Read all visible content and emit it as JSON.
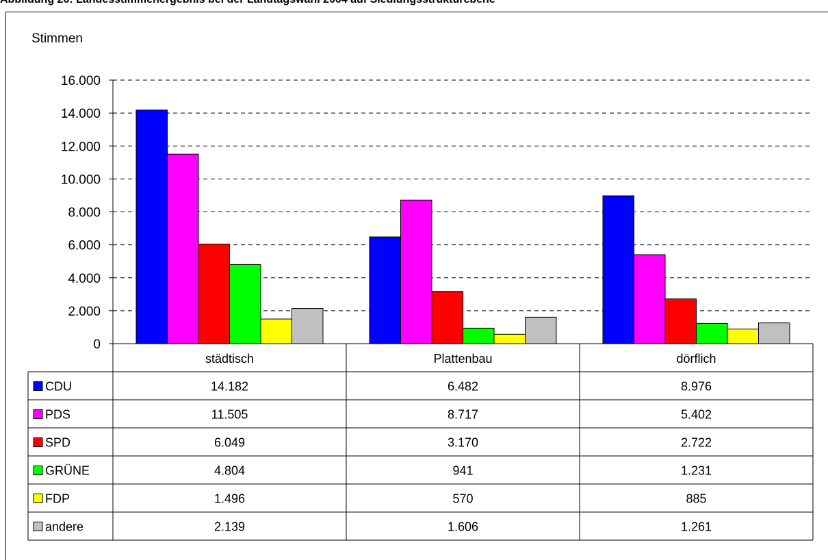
{
  "header": {
    "title": "Abbildung 26: Landesstimmenergebnis bei der Landtagswahl 2004 auf Siedlungsstrukturebene"
  },
  "colors": {
    "CDU": "#0000ff",
    "PDS": "#ff00ff",
    "SPD": "#ff0000",
    "GRÜNE": "#00ff00",
    "FDP": "#ffff00",
    "andere": "#c0c0c0"
  },
  "chart_data": {
    "type": "bar",
    "title": "",
    "ylabel": "Stimmen",
    "xlabel": "",
    "ylim": [
      0,
      16000
    ],
    "yticks": [
      0,
      2000,
      4000,
      6000,
      8000,
      10000,
      12000,
      14000,
      16000
    ],
    "ytick_labels": [
      "0",
      "2.000",
      "4.000",
      "6.000",
      "8.000",
      "10.000",
      "12.000",
      "14.000",
      "16.000"
    ],
    "grid": "horizontal dashed",
    "legend": "data table below chart",
    "categories": [
      "städtisch",
      "Plattenbau",
      "dörflich"
    ],
    "series": [
      {
        "name": "CDU",
        "values": [
          14182,
          6482,
          8976
        ],
        "labels": [
          "14.182",
          "6.482",
          "8.976"
        ]
      },
      {
        "name": "PDS",
        "values": [
          11505,
          8717,
          5402
        ],
        "labels": [
          "11.505",
          "8.717",
          "5.402"
        ]
      },
      {
        "name": "SPD",
        "values": [
          6049,
          3170,
          2722
        ],
        "labels": [
          "6.049",
          "3.170",
          "2.722"
        ]
      },
      {
        "name": "GRÜNE",
        "values": [
          4804,
          941,
          1231
        ],
        "labels": [
          "4.804",
          "941",
          "1.231"
        ]
      },
      {
        "name": "FDP",
        "values": [
          1496,
          570,
          885
        ],
        "labels": [
          "1.496",
          "570",
          "885"
        ]
      },
      {
        "name": "andere",
        "values": [
          2139,
          1606,
          1261
        ],
        "labels": [
          "2.139",
          "1.606",
          "1.261"
        ]
      }
    ]
  }
}
